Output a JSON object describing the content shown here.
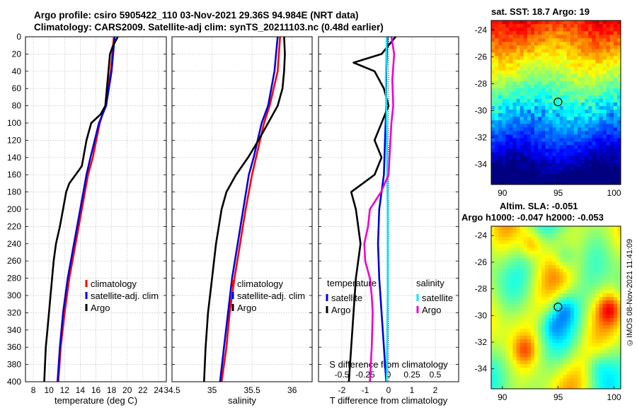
{
  "titles": {
    "line1": "Argo profile: csiro 5905422_110 03-Nov-2021 29.36S 94.984E (NRT data)",
    "line2": "Climatology: CARS2009. Satellite-adj clim: synTS_20211103.nc (0.48d earlier)"
  },
  "colors": {
    "clim": "#ff0000",
    "sat": "#0000dd",
    "argo": "#000000",
    "sal_sat": "#00e5ff",
    "sal_argo": "#ee00cc"
  },
  "depth_ticks": [
    0,
    20,
    40,
    60,
    80,
    100,
    120,
    140,
    160,
    180,
    200,
    220,
    240,
    260,
    280,
    300,
    320,
    340,
    360,
    380,
    400
  ],
  "chart_data": [
    {
      "type": "line",
      "title": "",
      "xlabel": "temperature (deg C)",
      "ylabel": "",
      "xlim": [
        7,
        25
      ],
      "ylim": [
        400,
        0
      ],
      "xticks": [
        8,
        10,
        12,
        14,
        16,
        18,
        20,
        22,
        24
      ],
      "legend": [
        "climatology",
        "satellite-adj. clim",
        "Argo"
      ],
      "series": [
        {
          "name": "climatology",
          "color": "clim",
          "depth": [
            0,
            40,
            80,
            100,
            140,
            160,
            200,
            240,
            280,
            320,
            360,
            400
          ],
          "values": [
            18.3,
            17.9,
            17.2,
            16.5,
            15.6,
            15.0,
            14.2,
            13.4,
            12.6,
            12.0,
            11.5,
            11.2
          ]
        },
        {
          "name": "satellite-adj. clim",
          "color": "sat",
          "depth": [
            0,
            40,
            80,
            100,
            140,
            160,
            200,
            240,
            280,
            320,
            360,
            400
          ],
          "values": [
            18.4,
            18.0,
            17.3,
            16.4,
            15.3,
            14.8,
            14.0,
            13.2,
            12.4,
            11.8,
            11.4,
            11.1
          ]
        },
        {
          "name": "Argo",
          "color": "argo",
          "depth": [
            0,
            10,
            20,
            40,
            60,
            80,
            90,
            100,
            120,
            150,
            160,
            170,
            180,
            200,
            220,
            240,
            260,
            280,
            300,
            320,
            340,
            360,
            380,
            400
          ],
          "values": [
            18.8,
            18.2,
            17.8,
            17.6,
            17.4,
            17.2,
            16.6,
            15.4,
            14.8,
            14.2,
            13.4,
            12.6,
            12.2,
            11.8,
            11.4,
            10.9,
            10.6,
            10.4,
            10.2,
            10.0,
            9.8,
            9.6,
            9.5,
            9.4
          ]
        }
      ]
    },
    {
      "type": "line",
      "title": "",
      "xlabel": "salinity",
      "ylabel": "",
      "xlim": [
        34.5,
        36.25
      ],
      "ylim": [
        400,
        0
      ],
      "xticks": [
        34.5,
        35,
        35.5,
        36
      ],
      "xticklabels": [
        "34.5",
        "35",
        "35.5",
        "36"
      ],
      "legend": [
        "climatology",
        "satellite-adj. clim",
        "Argo"
      ],
      "series": [
        {
          "name": "climatology",
          "color": "clim",
          "depth": [
            0,
            40,
            80,
            100,
            140,
            160,
            200,
            240,
            280,
            320,
            360,
            400
          ],
          "values": [
            35.85,
            35.82,
            35.72,
            35.65,
            35.55,
            35.5,
            35.42,
            35.35,
            35.28,
            35.22,
            35.18,
            35.12
          ]
        },
        {
          "name": "satellite-adj. clim",
          "color": "sat",
          "depth": [
            0,
            40,
            80,
            100,
            140,
            160,
            200,
            240,
            280,
            320,
            360,
            400
          ],
          "values": [
            35.82,
            35.78,
            35.7,
            35.62,
            35.52,
            35.46,
            35.39,
            35.32,
            35.25,
            35.2,
            35.15,
            35.1
          ]
        },
        {
          "name": "Argo",
          "color": "argo",
          "depth": [
            0,
            20,
            40,
            60,
            80,
            100,
            120,
            140,
            160,
            180,
            200,
            240,
            280,
            320,
            360,
            400
          ],
          "values": [
            35.9,
            35.91,
            35.9,
            35.88,
            35.82,
            35.7,
            35.58,
            35.45,
            35.3,
            35.18,
            35.12,
            35.05,
            35.0,
            34.95,
            34.92,
            34.9
          ]
        }
      ]
    },
    {
      "type": "line",
      "title": "",
      "xlabel": "T difference from climatology",
      "xlabel_top": "S difference from climatology",
      "ylabel": "",
      "xlim": [
        -3,
        3
      ],
      "ylim": [
        400,
        0
      ],
      "xticks": [
        -2,
        -1,
        0,
        1,
        2
      ],
      "top_xticks": [
        -0.5,
        -0.25,
        0,
        0.25,
        0.5
      ],
      "top_xticklabels": [
        "-0.5",
        "-0.25",
        "0",
        "0.25",
        "0.5"
      ],
      "legend_groups": [
        {
          "title": "temperature",
          "items": [
            "satellite",
            "Argo"
          ]
        },
        {
          "title": "salinity",
          "items": [
            "satellite",
            "Argo"
          ]
        }
      ],
      "series": [
        {
          "name": "temperature satellite",
          "color": "sat",
          "depth": [
            0,
            40,
            80,
            120,
            160,
            200,
            240,
            280,
            320,
            360,
            400
          ],
          "values": [
            -0.05,
            -0.1,
            -0.1,
            -0.15,
            -0.2,
            -0.4,
            -0.45,
            -0.4,
            -0.3,
            -0.2,
            -0.1
          ]
        },
        {
          "name": "temperature Argo",
          "color": "argo",
          "depth": [
            0,
            10,
            20,
            30,
            40,
            60,
            80,
            100,
            120,
            140,
            160,
            180,
            200,
            240,
            280,
            320,
            360,
            400
          ],
          "values": [
            0.3,
            0.0,
            -0.3,
            -1.5,
            -0.6,
            -0.2,
            0.0,
            -0.3,
            -0.6,
            -0.3,
            -0.6,
            -1.6,
            -1.4,
            -1.2,
            -1.4,
            -1.5,
            -1.6,
            -1.7
          ]
        },
        {
          "name": "salinity satellite",
          "color": "sal_sat",
          "depth": [
            0,
            50,
            100,
            200,
            300,
            400
          ],
          "values": [
            -0.02,
            -0.03,
            -0.02,
            -0.01,
            -0.01,
            -0.02
          ]
        },
        {
          "name": "salinity Argo",
          "color": "sal_argo",
          "depth": [
            0,
            20,
            50,
            80,
            100,
            140,
            160,
            180,
            200,
            220,
            240,
            260,
            280,
            300,
            320,
            360,
            400
          ],
          "values": [
            0.03,
            0.06,
            0.04,
            0.05,
            0.03,
            0.01,
            0.0,
            -0.08,
            -0.2,
            -0.22,
            -0.26,
            -0.25,
            -0.2,
            -0.18,
            -0.17,
            -0.18,
            -0.2
          ]
        }
      ]
    }
  ],
  "maps": {
    "sst": {
      "title": "sat. SST: 18.7 Argo: 19",
      "x_ticks": [
        90,
        95,
        100
      ],
      "y_ticks": [
        -24,
        -26,
        -28,
        -30,
        -32,
        -34
      ],
      "marker_lon": 94.984,
      "marker_lat": -29.36
    },
    "sla": {
      "title1": "Altim. SLA: -0.051",
      "title2": "Argo h1000: -0.047 h2000: -0.053",
      "x_ticks": [
        90,
        95,
        100
      ],
      "y_ticks": [
        -24,
        -26,
        -28,
        -30,
        -32,
        -34
      ],
      "marker_lon": 94.984,
      "marker_lat": -29.36
    }
  },
  "stamp": "©IMOS 08-Nov-2021 11:41:09"
}
